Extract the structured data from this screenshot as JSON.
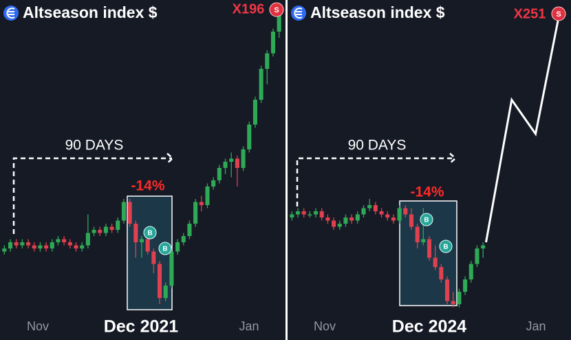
{
  "chart_data": [
    {
      "type": "candlestick",
      "title": "Altseason index $",
      "ylim": [
        0,
        100
      ],
      "xlim": [
        -0.5,
        46.5
      ],
      "up_color": "#2eaa56",
      "down_color": "#e0404f",
      "x_labels": [
        "Nov",
        "Dec 2021",
        "Jan"
      ],
      "annotations": {
        "range": "90 DAYS",
        "drop": "-14%",
        "gain": "X196",
        "sell": "S",
        "buys": [
          "B",
          "B"
        ]
      },
      "candles": [
        [
          21,
          23,
          20,
          22
        ],
        [
          22,
          25,
          21,
          24
        ],
        [
          24,
          25,
          22,
          23
        ],
        [
          23,
          25,
          22,
          24
        ],
        [
          24,
          25,
          22,
          23
        ],
        [
          23,
          24,
          21,
          22
        ],
        [
          22,
          24,
          21,
          23
        ],
        [
          23,
          24,
          21,
          22
        ],
        [
          22,
          25,
          21,
          24
        ],
        [
          24,
          26,
          23,
          25
        ],
        [
          25,
          26,
          23,
          24
        ],
        [
          24,
          25,
          22,
          23
        ],
        [
          23,
          24,
          21,
          22
        ],
        [
          22,
          24,
          21,
          23
        ],
        [
          23,
          33,
          22,
          27
        ],
        [
          27,
          29,
          26,
          28
        ],
        [
          28,
          29,
          26,
          27
        ],
        [
          27,
          30,
          26,
          29
        ],
        [
          29,
          30,
          27,
          28
        ],
        [
          28,
          32,
          27,
          31
        ],
        [
          31,
          38,
          30,
          37
        ],
        [
          37,
          38,
          29,
          30
        ],
        [
          30,
          31,
          19,
          24
        ],
        [
          24,
          26,
          19,
          25
        ],
        [
          25,
          26,
          20,
          21
        ],
        [
          21,
          22,
          14,
          17
        ],
        [
          17,
          18,
          4,
          6
        ],
        [
          6,
          11,
          5,
          10
        ],
        [
          10,
          22,
          9,
          21
        ],
        [
          21,
          25,
          20,
          24
        ],
        [
          24,
          27,
          23,
          26
        ],
        [
          26,
          31,
          25,
          30
        ],
        [
          30,
          38,
          29,
          37
        ],
        [
          37,
          39,
          34,
          36
        ],
        [
          36,
          43,
          35,
          42
        ],
        [
          42,
          45,
          41,
          44
        ],
        [
          44,
          49,
          43,
          48
        ],
        [
          48,
          51,
          46,
          50
        ],
        [
          50,
          53,
          45,
          51
        ],
        [
          51,
          52,
          42,
          48
        ],
        [
          48,
          55,
          47,
          54
        ],
        [
          54,
          63,
          53,
          62
        ],
        [
          62,
          71,
          61,
          70
        ],
        [
          70,
          81,
          69,
          80
        ],
        [
          80,
          86,
          75,
          85
        ],
        [
          85,
          93,
          84,
          92
        ],
        [
          92,
          99,
          90,
          98
        ]
      ]
    },
    {
      "type": "candlestick",
      "title": "Altseason index $",
      "ylim": [
        0,
        100
      ],
      "xlim": [
        -0.5,
        46.5
      ],
      "up_color": "#2eaa56",
      "down_color": "#e0404f",
      "x_labels": [
        "Nov",
        "Dec 2024",
        "Jan"
      ],
      "annotations": {
        "range": "90 DAYS",
        "drop": "-14%",
        "gain": "X251",
        "sell": "S",
        "buys": [
          "B",
          "B"
        ]
      },
      "candles": [
        [
          32,
          34,
          31,
          33
        ],
        [
          33,
          35,
          32,
          34
        ],
        [
          34,
          35,
          32,
          33
        ],
        [
          33,
          34,
          32,
          33
        ],
        [
          33,
          35,
          32,
          34
        ],
        [
          34,
          35,
          31,
          32
        ],
        [
          32,
          33,
          30,
          31
        ],
        [
          31,
          32,
          28,
          29
        ],
        [
          29,
          31,
          28,
          30
        ],
        [
          30,
          33,
          29,
          32
        ],
        [
          32,
          33,
          30,
          31
        ],
        [
          31,
          34,
          30,
          33
        ],
        [
          33,
          36,
          32,
          35
        ],
        [
          35,
          38,
          34,
          36
        ],
        [
          36,
          37,
          33,
          34
        ],
        [
          34,
          35,
          32,
          33
        ],
        [
          33,
          34,
          31,
          32
        ],
        [
          32,
          33,
          30,
          31
        ],
        [
          31,
          36,
          30,
          35
        ],
        [
          35,
          36,
          32,
          33
        ],
        [
          33,
          35,
          28,
          29
        ],
        [
          29,
          30,
          22,
          24
        ],
        [
          24,
          35,
          23,
          25
        ],
        [
          25,
          26,
          18,
          19
        ],
        [
          19,
          23,
          15,
          16
        ],
        [
          16,
          17,
          11,
          12
        ],
        [
          12,
          13,
          4,
          5
        ],
        [
          5,
          8,
          3,
          4
        ],
        [
          4,
          9,
          3,
          8
        ],
        [
          8,
          13,
          7,
          12
        ],
        [
          12,
          18,
          11,
          17
        ],
        [
          17,
          23,
          16,
          22
        ],
        [
          22,
          24,
          19,
          23
        ]
      ],
      "projection": {
        "x": [
          32.5,
          36.8,
          40.8,
          44.8
        ],
        "values": [
          24,
          70,
          59,
          98
        ],
        "color": "#ffffff"
      }
    }
  ]
}
